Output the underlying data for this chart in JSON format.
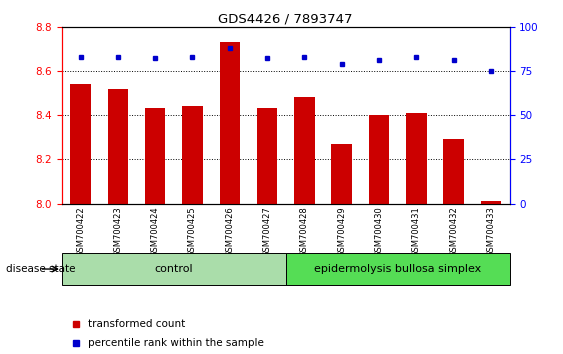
{
  "title": "GDS4426 / 7893747",
  "samples": [
    "GSM700422",
    "GSM700423",
    "GSM700424",
    "GSM700425",
    "GSM700426",
    "GSM700427",
    "GSM700428",
    "GSM700429",
    "GSM700430",
    "GSM700431",
    "GSM700432",
    "GSM700433"
  ],
  "bar_values": [
    8.54,
    8.52,
    8.43,
    8.44,
    8.73,
    8.43,
    8.48,
    8.27,
    8.4,
    8.41,
    8.29,
    8.01
  ],
  "percentile_values": [
    83,
    83,
    82,
    83,
    88,
    82,
    83,
    79,
    81,
    83,
    81,
    75
  ],
  "bar_color": "#cc0000",
  "percentile_color": "#0000cc",
  "ylim_left": [
    8.0,
    8.8
  ],
  "ylim_right": [
    0,
    100
  ],
  "yticks_left": [
    8.0,
    8.2,
    8.4,
    8.6,
    8.8
  ],
  "yticks_right": [
    0,
    25,
    50,
    75,
    100
  ],
  "control_count": 6,
  "control_label": "control",
  "disease_label": "epidermolysis bullosa simplex",
  "disease_state_label": "disease state",
  "legend_bar_label": "transformed count",
  "legend_dot_label": "percentile rank within the sample",
  "control_color": "#aaddaa",
  "disease_color": "#55dd55",
  "gray_bg": "#cccccc",
  "bar_width": 0.55,
  "grid_color": "#000000"
}
